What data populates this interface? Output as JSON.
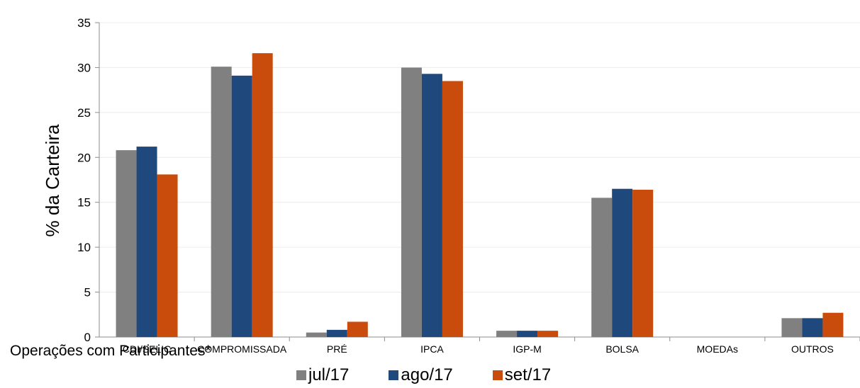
{
  "chart_data": {
    "type": "bar",
    "title": "",
    "xlabel": "",
    "ylabel": "% da Carteira",
    "ylim": [
      0,
      35
    ],
    "yticks": [
      0,
      5,
      10,
      15,
      20,
      25,
      30,
      35
    ],
    "categories": [
      "CDI/SELIC",
      "COMPROMISSADA",
      "PRÉ",
      "IPCA",
      "IGP-M",
      "BOLSA",
      "MOEDAs",
      "OUTROS"
    ],
    "series": [
      {
        "name": "jul/17",
        "color": "#808080",
        "values": [
          20.8,
          30.1,
          0.5,
          30.0,
          0.7,
          15.5,
          0,
          2.1
        ]
      },
      {
        "name": "ago/17",
        "color": "#1f497d",
        "values": [
          21.2,
          29.1,
          0.8,
          29.3,
          0.7,
          16.5,
          0,
          2.1
        ]
      },
      {
        "name": "set/17",
        "color": "#c94c0d",
        "values": [
          18.1,
          31.6,
          1.7,
          28.5,
          0.7,
          16.4,
          0,
          2.7
        ]
      }
    ],
    "grid": true,
    "legend_position": "bottom"
  },
  "footnote": "Operações com Participantes*"
}
